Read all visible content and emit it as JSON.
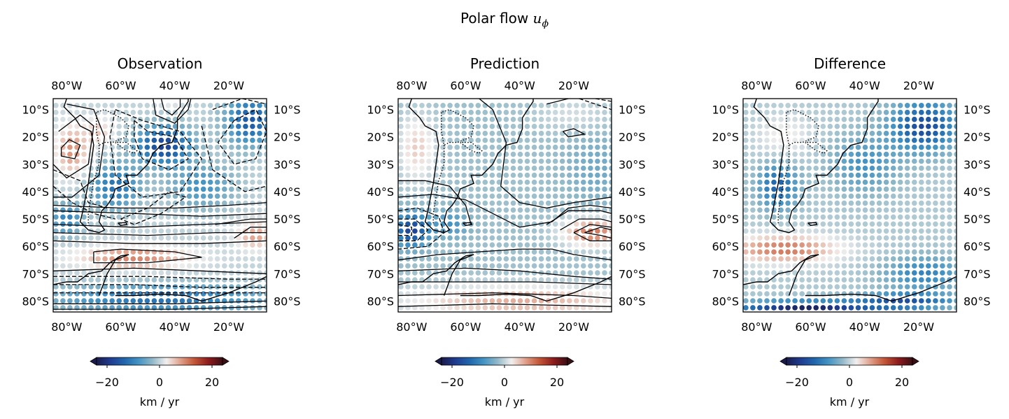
{
  "figure": {
    "title_prefix": "Polar flow",
    "title_symbol": "u",
    "title_subscript": "ϕ"
  },
  "colors": {
    "cmap": [
      "#1a1b4b",
      "#1f3d8f",
      "#2166ac",
      "#4393c3",
      "#92b9c8",
      "#f2efee",
      "#e0a08a",
      "#c25536",
      "#8c1c1c",
      "#3a0f14"
    ],
    "contour": "#000000"
  },
  "chart_data": [
    {
      "type": "heatmap",
      "title": "Observation",
      "x_ticks": [
        "80°W",
        "60°W",
        "40°W",
        "20°W"
      ],
      "x_tick_values": [
        -80,
        -60,
        -40,
        -20
      ],
      "y_ticks": [
        "10°S",
        "20°S",
        "30°S",
        "40°S",
        "50°S",
        "60°S",
        "70°S",
        "80°S"
      ],
      "y_tick_values": [
        -10,
        -20,
        -30,
        -40,
        -50,
        -60,
        -70,
        -80
      ],
      "xlim": [
        -85,
        -6
      ],
      "ylim": [
        -84,
        -6
      ],
      "field": "observation",
      "colorbar": {
        "ticks": [
          "−20",
          "0",
          "20"
        ],
        "tick_values": [
          -20,
          0,
          20
        ],
        "range": [
          -24,
          24
        ],
        "label": "km / yr"
      }
    },
    {
      "type": "heatmap",
      "title": "Prediction",
      "x_ticks": [
        "80°W",
        "60°W",
        "40°W",
        "20°W"
      ],
      "x_tick_values": [
        -80,
        -60,
        -40,
        -20
      ],
      "y_ticks": [
        "10°S",
        "20°S",
        "30°S",
        "40°S",
        "50°S",
        "60°S",
        "70°S",
        "80°S"
      ],
      "y_tick_values": [
        -10,
        -20,
        -30,
        -40,
        -50,
        -60,
        -70,
        -80
      ],
      "xlim": [
        -85,
        -6
      ],
      "ylim": [
        -84,
        -6
      ],
      "field": "prediction",
      "colorbar": {
        "ticks": [
          "−20",
          "0",
          "20"
        ],
        "tick_values": [
          -20,
          0,
          20
        ],
        "range": [
          -24,
          24
        ],
        "label": "km / yr"
      }
    },
    {
      "type": "heatmap",
      "title": "Difference",
      "x_ticks": [
        "80°W",
        "60°W",
        "40°W",
        "20°W"
      ],
      "x_tick_values": [
        -80,
        -60,
        -40,
        -20
      ],
      "y_ticks": [
        "10°S",
        "20°S",
        "30°S",
        "40°S",
        "50°S",
        "60°S",
        "70°S",
        "80°S"
      ],
      "y_tick_values": [
        -10,
        -20,
        -30,
        -40,
        -50,
        -60,
        -70,
        -80
      ],
      "xlim": [
        -85,
        -6
      ],
      "ylim": [
        -84,
        -6
      ],
      "field": "difference",
      "colorbar": {
        "ticks": [
          "−20",
          "0",
          "20"
        ],
        "tick_values": [
          -20,
          0,
          20
        ],
        "range": [
          -24,
          24
        ],
        "label": "km / yr"
      }
    }
  ]
}
